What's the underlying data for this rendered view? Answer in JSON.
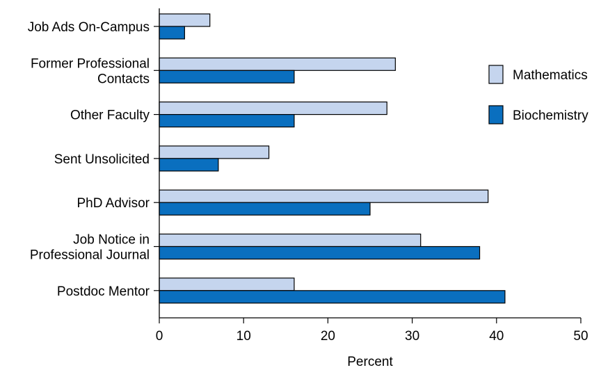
{
  "chart_data": {
    "type": "bar",
    "orientation": "horizontal",
    "categories": [
      [
        "Job Ads On-Campus"
      ],
      [
        "Former Professional",
        "Contacts"
      ],
      [
        "Other Faculty"
      ],
      [
        "Sent Unsolicited"
      ],
      [
        "PhD Advisor"
      ],
      [
        "Job Notice in",
        "Professional Journal"
      ],
      [
        "Postdoc Mentor"
      ]
    ],
    "series": [
      {
        "name": "Mathematics",
        "color": "#c5d5ee",
        "values": [
          6,
          28,
          27,
          13,
          39,
          31,
          16
        ]
      },
      {
        "name": "Biochemistry",
        "color": "#0a6fbf",
        "values": [
          3,
          16,
          16,
          7,
          25,
          38,
          41
        ]
      }
    ],
    "xlabel": "Percent",
    "ylabel": "",
    "title": "",
    "xlim": [
      0,
      50
    ],
    "xticks": [
      0,
      10,
      20,
      30,
      40,
      50
    ],
    "grid": false,
    "legend_position": "right"
  }
}
